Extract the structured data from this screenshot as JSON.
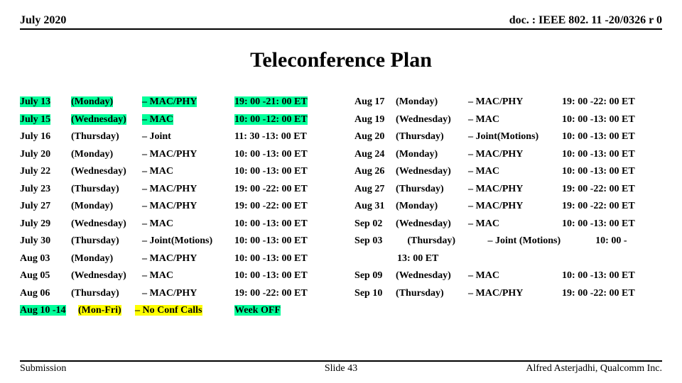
{
  "header": {
    "date": "July 2020",
    "doc": "doc. : IEEE 802. 11 -20/0326 r 0"
  },
  "title": "Teleconference Plan",
  "footer": {
    "left": "Submission",
    "center": "Slide 43",
    "right": "Alfred Asterjadhi, Qualcomm Inc."
  },
  "left": [
    {
      "date": "July 13",
      "dateHL": true,
      "day": "(Monday)",
      "dayHL": true,
      "topic": "– MAC/PHY",
      "topicHL": true,
      "time": "19: 00 -21: 00 ET",
      "timeHL": true
    },
    {
      "date": "July 15",
      "dateHL": true,
      "day": "(Wednesday)",
      "dayHL": true,
      "topic": "– MAC",
      "topicHL": true,
      "time": "10: 00 -12: 00 ET",
      "timeHL": true
    },
    {
      "date": "July 16",
      "day": "(Thursday)",
      "topic": "– Joint",
      "time": "11: 30 -13: 00 ET"
    },
    {
      "date": "July 20",
      "day": "(Monday)",
      "topic": "– MAC/PHY",
      "time": "10: 00 -13: 00 ET"
    },
    {
      "date": "July 22",
      "day": "(Wednesday)",
      "topic": "– MAC",
      "time": "10: 00 -13: 00 ET"
    },
    {
      "date": "July 23",
      "day": "(Thursday)",
      "topic": "– MAC/PHY",
      "time": "19: 00 -22: 00 ET"
    },
    {
      "date": "July 27",
      "day": "(Monday)",
      "topic": "– MAC/PHY",
      "time": "19: 00 -22: 00 ET"
    },
    {
      "date": "July 29",
      "day": "(Wednesday)",
      "topic": "– MAC",
      "time": "10: 00 -13: 00 ET"
    },
    {
      "date": "July 30",
      "day": "(Thursday)",
      "topic": "– Joint(Motions)",
      "time": "10: 00 -13: 00 ET"
    },
    {
      "date": "Aug 03",
      "day": "(Monday)",
      "topic": "– MAC/PHY",
      "time": "10: 00 -13: 00 ET"
    },
    {
      "date": "Aug 05",
      "day": "(Wednesday)",
      "topic": "– MAC",
      "time": "10: 00 -13: 00 ET"
    },
    {
      "date": "Aug 06",
      "day": "(Thursday)",
      "topic": "– MAC/PHY",
      "time": "19: 00 -22: 00 ET"
    }
  ],
  "leftLast": {
    "date": "Aug 10 -14",
    "day": "(Mon-Fri)",
    "topic": "– No Conf Calls",
    "time": "Week OFF"
  },
  "right": [
    {
      "date": "Aug 17",
      "day": "(Monday)",
      "topic": "– MAC/PHY",
      "time": "19: 00 -22: 00 ET"
    },
    {
      "date": "Aug 19",
      "day": "(Wednesday)",
      "topic": "– MAC",
      "time": "10: 00 -13: 00 ET"
    },
    {
      "date": "Aug 20",
      "day": "(Thursday)",
      "topic": "– Joint(Motions)",
      "time": "10: 00 -13: 00 ET"
    }
  ],
  "rightMid": [
    {
      "date": "Aug 24",
      "day": "(Monday)",
      "topic": "– MAC/PHY",
      "time": "10: 00 -13: 00 ET"
    },
    {
      "date": "Aug 26",
      "day": "(Wednesday)",
      "topic": "– MAC",
      "time": "10: 00 -13: 00 ET"
    },
    {
      "date": "Aug 27",
      "day": "(Thursday)",
      "topic": "– MAC/PHY",
      "time": "19: 00 -22: 00 ET"
    },
    {
      "date": "Aug 31",
      "day": "(Monday)",
      "topic": "– MAC/PHY",
      "time": "19: 00 -22: 00 ET"
    },
    {
      "date": "Sep 02",
      "day": "(Wednesday)",
      "topic": "– MAC",
      "time": "10: 00 -13: 00 ET"
    }
  ],
  "rightSpecial": {
    "line1": "Sep 03          (Thursday)             – Joint (Motions)              10: 00 -",
    "line2": "13: 00 ET"
  },
  "rightTail": [
    {
      "date": "Sep 09",
      "day": "(Wednesday)",
      "topic": "– MAC",
      "time": "10: 00 -13: 00 ET"
    },
    {
      "date": "Sep 10",
      "day": "(Thursday)",
      "topic": "– MAC/PHY",
      "time": "19: 00 -22: 00 ET"
    }
  ]
}
